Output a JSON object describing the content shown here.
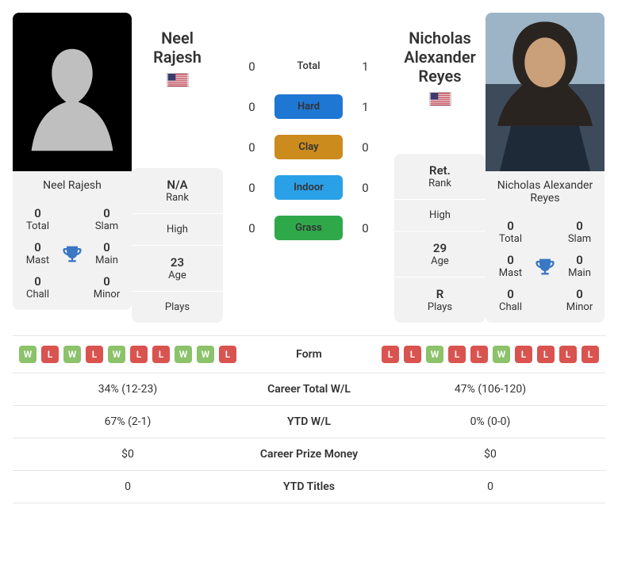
{
  "colors": {
    "hard": "#1f77d4",
    "clay": "#cc8b1d",
    "indoor": "#2aa0e6",
    "grass": "#2fa84a",
    "win": "#8cc26a",
    "loss": "#d9534f",
    "trophy": "#3a77c4"
  },
  "center": {
    "total": {
      "label": "Total",
      "p1": "0",
      "p2": "1"
    },
    "hard": {
      "label": "Hard",
      "p1": "0",
      "p2": "1"
    },
    "clay": {
      "label": "Clay",
      "p1": "0",
      "p2": "0"
    },
    "indoor": {
      "label": "Indoor",
      "p1": "0",
      "p2": "0"
    },
    "grass": {
      "label": "Grass",
      "p1": "0",
      "p2": "0"
    }
  },
  "p1": {
    "name": "Neel Rajesh",
    "country": "USA",
    "titles": {
      "total": "0",
      "slam": "0",
      "mast": "0",
      "main": "0",
      "chall": "0",
      "minor": "0"
    },
    "rank_value": "N/A",
    "rank_label": "Rank",
    "high_value": "",
    "high_label": "High",
    "age_value": "23",
    "age_label": "Age",
    "plays_value": "",
    "plays_label": "Plays",
    "form": [
      "W",
      "L",
      "W",
      "L",
      "W",
      "L",
      "L",
      "W",
      "W",
      "L"
    ]
  },
  "p2": {
    "name": "Nicholas Alexander Reyes",
    "country": "USA",
    "titles": {
      "total": "0",
      "slam": "0",
      "mast": "0",
      "main": "0",
      "chall": "0",
      "minor": "0"
    },
    "rank_value": "Ret.",
    "rank_label": "Rank",
    "high_value": "",
    "high_label": "High",
    "age_value": "29",
    "age_label": "Age",
    "plays_value": "R",
    "plays_label": "Plays",
    "form": [
      "L",
      "L",
      "W",
      "L",
      "L",
      "W",
      "L",
      "L",
      "L",
      "L"
    ]
  },
  "labels": {
    "total": "Total",
    "slam": "Slam",
    "mast": "Mast",
    "main": "Main",
    "chall": "Chall",
    "minor": "Minor",
    "form": "Form",
    "career_wl": "Career Total W/L",
    "ytd_wl": "YTD W/L",
    "prize": "Career Prize Money",
    "ytd_titles": "YTD Titles"
  },
  "rows": {
    "career_wl": {
      "p1": "34% (12-23)",
      "p2": "47% (106-120)"
    },
    "ytd_wl": {
      "p1": "67% (2-1)",
      "p2": "0% (0-0)"
    },
    "prize": {
      "p1": "$0",
      "p2": "$0"
    },
    "ytd_titles": {
      "p1": "0",
      "p2": "0"
    }
  }
}
